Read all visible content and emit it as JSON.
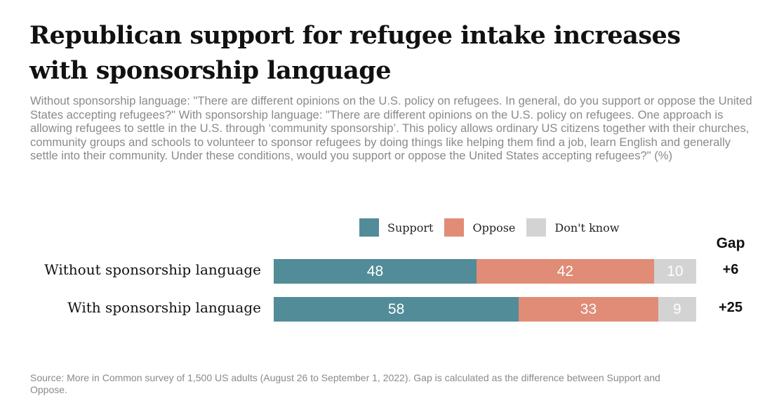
{
  "title": "Republican support for refugee intake increases with sponsorship language",
  "subtitle": "Without sponsorship language: \"There are different opinions on the U.S. policy on refugees. In general, do you support or oppose the United States accepting refugees?\" With sponsorship language: \"There are different opinions on the U.S. policy on refugees. One approach is allowing refugees to settle in the U.S. through ‘community sponsorship’. This policy allows ordinary US citizens together with their churches, community groups and schools to volunteer to sponsor refugees by doing things like helping them find a job, learn English and generally settle into their community. Under these conditions, would you support or oppose the United States accepting refugees?\" (%)",
  "source": "Source: More in Common survey of 1,500 US adults (August 26 to September 1, 2022). Gap is calculated as the difference between Support and Oppose.",
  "colors": {
    "support": "#528c98",
    "oppose": "#e08c77",
    "dont_know": "#d3d3d3"
  },
  "chart_data": {
    "type": "bar",
    "orientation": "horizontal",
    "stacked": true,
    "legend_position": "top",
    "categories": [
      "Without sponsorship language",
      "With sponsorship language"
    ],
    "series": [
      {
        "name": "Support",
        "values": [
          48,
          58
        ]
      },
      {
        "name": "Oppose",
        "values": [
          42,
          33
        ]
      },
      {
        "name": "Don't know",
        "values": [
          10,
          9
        ]
      }
    ],
    "gap_header": "Gap",
    "gap_labels": [
      "+6",
      "+25"
    ]
  }
}
